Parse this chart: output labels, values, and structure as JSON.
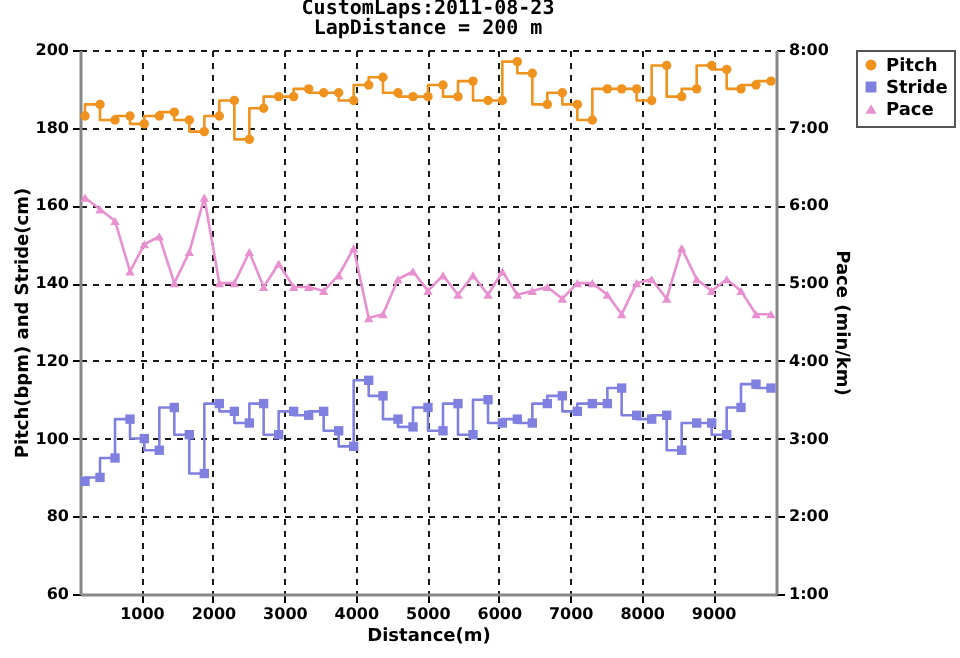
{
  "chart_data": {
    "type": "step",
    "title": "CustomLaps:2011-08-23",
    "subtitle": "LapDistance = 200 m",
    "xlabel": "Distance(m)",
    "ylabel": "Pitch(bpm) and Stride(cm)",
    "y2label": "Pace (min/km)",
    "x": [
      210,
      420,
      630,
      840,
      1040,
      1250,
      1460,
      1670,
      1880,
      2090,
      2300,
      2510,
      2710,
      2920,
      3130,
      3340,
      3550,
      3760,
      3970,
      4180,
      4380,
      4590,
      4800,
      5010,
      5220,
      5430,
      5640,
      5850,
      6050,
      6260,
      6470,
      6680,
      6890,
      7100,
      7310,
      7520,
      7720,
      7930,
      8140,
      8350,
      8560,
      8770,
      8980,
      9190,
      9390,
      9600,
      9810
    ],
    "series": [
      {
        "name": "Pitch",
        "marker": "circle",
        "color": "#f0921e",
        "values": [
          183,
          186,
          182,
          183,
          181,
          183,
          184,
          182,
          179,
          183,
          187,
          177,
          185,
          188,
          188,
          190,
          189,
          189,
          187,
          191,
          193,
          189,
          188,
          188,
          191,
          188,
          192,
          187,
          187,
          197,
          194,
          186,
          189,
          186,
          182,
          190,
          190,
          190,
          187,
          196,
          188,
          190,
          196,
          195,
          190,
          191,
          192
        ]
      },
      {
        "name": "Stride",
        "marker": "square",
        "color": "#8080e0",
        "values": [
          89,
          90,
          95,
          105,
          100,
          97,
          108,
          101,
          91,
          109,
          107,
          104,
          109,
          101,
          107,
          106,
          107,
          102,
          98,
          115,
          111,
          105,
          103,
          108,
          102,
          109,
          101,
          110,
          104,
          105,
          104,
          109,
          111,
          107,
          109,
          109,
          113,
          106,
          105,
          106,
          97,
          104,
          104,
          101,
          108,
          114,
          113
        ]
      },
      {
        "name": "Pace",
        "type": "line",
        "marker": "triangle",
        "axis": "y2",
        "color": "#e890d0",
        "values": [
          6.1,
          5.95,
          5.8,
          5.15,
          5.5,
          5.6,
          5.0,
          5.4,
          6.1,
          5.0,
          5.0,
          5.4,
          4.95,
          5.25,
          4.95,
          4.95,
          4.9,
          5.1,
          5.45,
          4.55,
          4.6,
          5.05,
          5.15,
          4.9,
          5.1,
          4.85,
          5.1,
          4.85,
          5.15,
          4.85,
          4.9,
          4.95,
          4.8,
          5.0,
          5.0,
          4.85,
          4.6,
          5.0,
          5.05,
          4.8,
          5.45,
          5.05,
          4.9,
          5.05,
          4.9,
          4.6,
          4.6
        ]
      }
    ],
    "xlim": [
      140,
      9880
    ],
    "xticks": [
      1000,
      2000,
      3000,
      4000,
      5000,
      6000,
      7000,
      8000,
      9000
    ],
    "ylim": [
      60,
      200
    ],
    "yticks": [
      60,
      80,
      100,
      120,
      140,
      160,
      180,
      200
    ],
    "y2lim": [
      1,
      8
    ],
    "y2ticks": [
      {
        "value": 1,
        "label": "1:00"
      },
      {
        "value": 2,
        "label": "2:00"
      },
      {
        "value": 3,
        "label": "3:00"
      },
      {
        "value": 4,
        "label": "4:00"
      },
      {
        "value": 5,
        "label": "5:00"
      },
      {
        "value": 6,
        "label": "6:00"
      },
      {
        "value": 7,
        "label": "7:00"
      },
      {
        "value": 8,
        "label": "8:00"
      }
    ],
    "grid": true,
    "legend": "top right",
    "line_style": "solid"
  }
}
